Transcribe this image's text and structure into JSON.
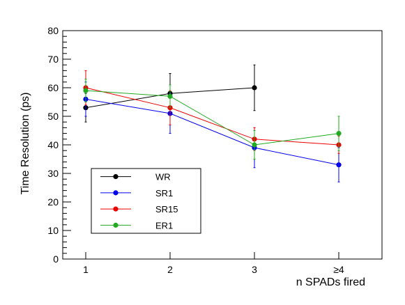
{
  "chart_data": {
    "type": "line",
    "xlabel": "n SPADs fired",
    "ylabel": "Time Resolution (ps)",
    "categories": [
      "1",
      "2",
      "3",
      "≥4"
    ],
    "ylim": [
      0,
      80
    ],
    "yticks": [
      0,
      10,
      20,
      30,
      40,
      50,
      60,
      70,
      80
    ],
    "grid": false,
    "legend_position": "bottom-left",
    "series": [
      {
        "name": "WR",
        "color": "#000000",
        "values": [
          53,
          58,
          60,
          null
        ],
        "err": [
          5,
          7,
          8,
          null
        ]
      },
      {
        "name": "SR1",
        "color": "#0000ee",
        "values": [
          56,
          51,
          39,
          33
        ],
        "err": [
          6,
          7,
          7,
          6
        ]
      },
      {
        "name": "SR15",
        "color": "#ee0000",
        "values": [
          60,
          53,
          42,
          40
        ],
        "err": [
          6,
          6,
          4,
          3
        ]
      },
      {
        "name": "ER1",
        "color": "#22aa22",
        "values": [
          59,
          57,
          40,
          44
        ],
        "err": [
          4,
          4,
          5,
          6
        ]
      }
    ]
  }
}
